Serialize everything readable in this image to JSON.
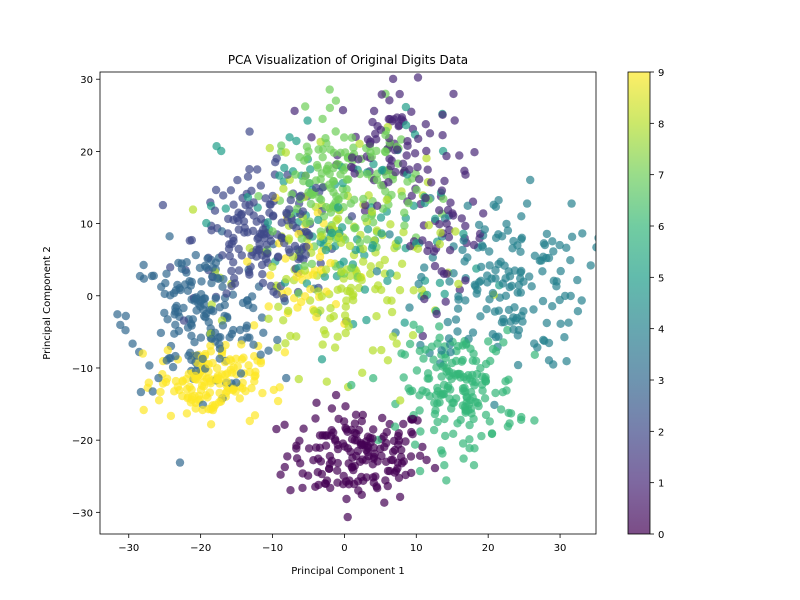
{
  "chart_data": {
    "type": "scatter",
    "title": "PCA Visualization of Original Digits Data",
    "xlabel": "Principal Component 1",
    "ylabel": "Principal Component 2",
    "xlim": [
      -34,
      35
    ],
    "ylim": [
      -33,
      31
    ],
    "xticks": [
      -30,
      -20,
      -10,
      0,
      10,
      20,
      30
    ],
    "yticks": [
      -30,
      -20,
      -10,
      0,
      10,
      20,
      30
    ],
    "grid": false,
    "marker_alpha": 0.7,
    "colorbar": {
      "label": "",
      "min": 0,
      "max": 9,
      "ticks": [
        0,
        1,
        2,
        3,
        4,
        5,
        6,
        7,
        8,
        9
      ],
      "colormap": "viridis",
      "colors": [
        "#440154",
        "#482878",
        "#3e4989",
        "#31688e",
        "#26828e",
        "#1f9e89",
        "#35b779",
        "#6ece58",
        "#b5de2b",
        "#fde725"
      ]
    },
    "clusters": [
      {
        "digit": 0,
        "center": [
          2,
          -22
        ],
        "spread": [
          5,
          3.3
        ],
        "n": 175
      },
      {
        "digit": 1,
        "center": [
          7,
          21
        ],
        "spread": [
          4,
          4
        ],
        "n": 85
      },
      {
        "digit": 1,
        "center": [
          14,
          8
        ],
        "spread": [
          3,
          4
        ],
        "n": 45
      },
      {
        "digit": 2,
        "center": [
          -11,
          8
        ],
        "spread": [
          5,
          4.5
        ],
        "n": 170
      },
      {
        "digit": 3,
        "center": [
          -20,
          -3
        ],
        "spread": [
          5,
          5
        ],
        "n": 170
      },
      {
        "digit": 4,
        "center": [
          22,
          2
        ],
        "spread": [
          6,
          6
        ],
        "n": 170
      },
      {
        "digit": 5,
        "center": [
          1,
          9
        ],
        "spread": [
          9,
          8
        ],
        "n": 100
      },
      {
        "digit": 6,
        "center": [
          16,
          -13
        ],
        "spread": [
          4,
          4
        ],
        "n": 175
      },
      {
        "digit": 7,
        "center": [
          0,
          15
        ],
        "spread": [
          5,
          5
        ],
        "n": 170
      },
      {
        "digit": 8,
        "center": [
          0,
          3
        ],
        "spread": [
          7,
          7
        ],
        "n": 165
      },
      {
        "digit": 9,
        "center": [
          -19,
          -12
        ],
        "spread": [
          3.5,
          2.5
        ],
        "n": 150
      },
      {
        "digit": 9,
        "center": [
          -6,
          3
        ],
        "spread": [
          4,
          5
        ],
        "n": 40
      }
    ]
  }
}
